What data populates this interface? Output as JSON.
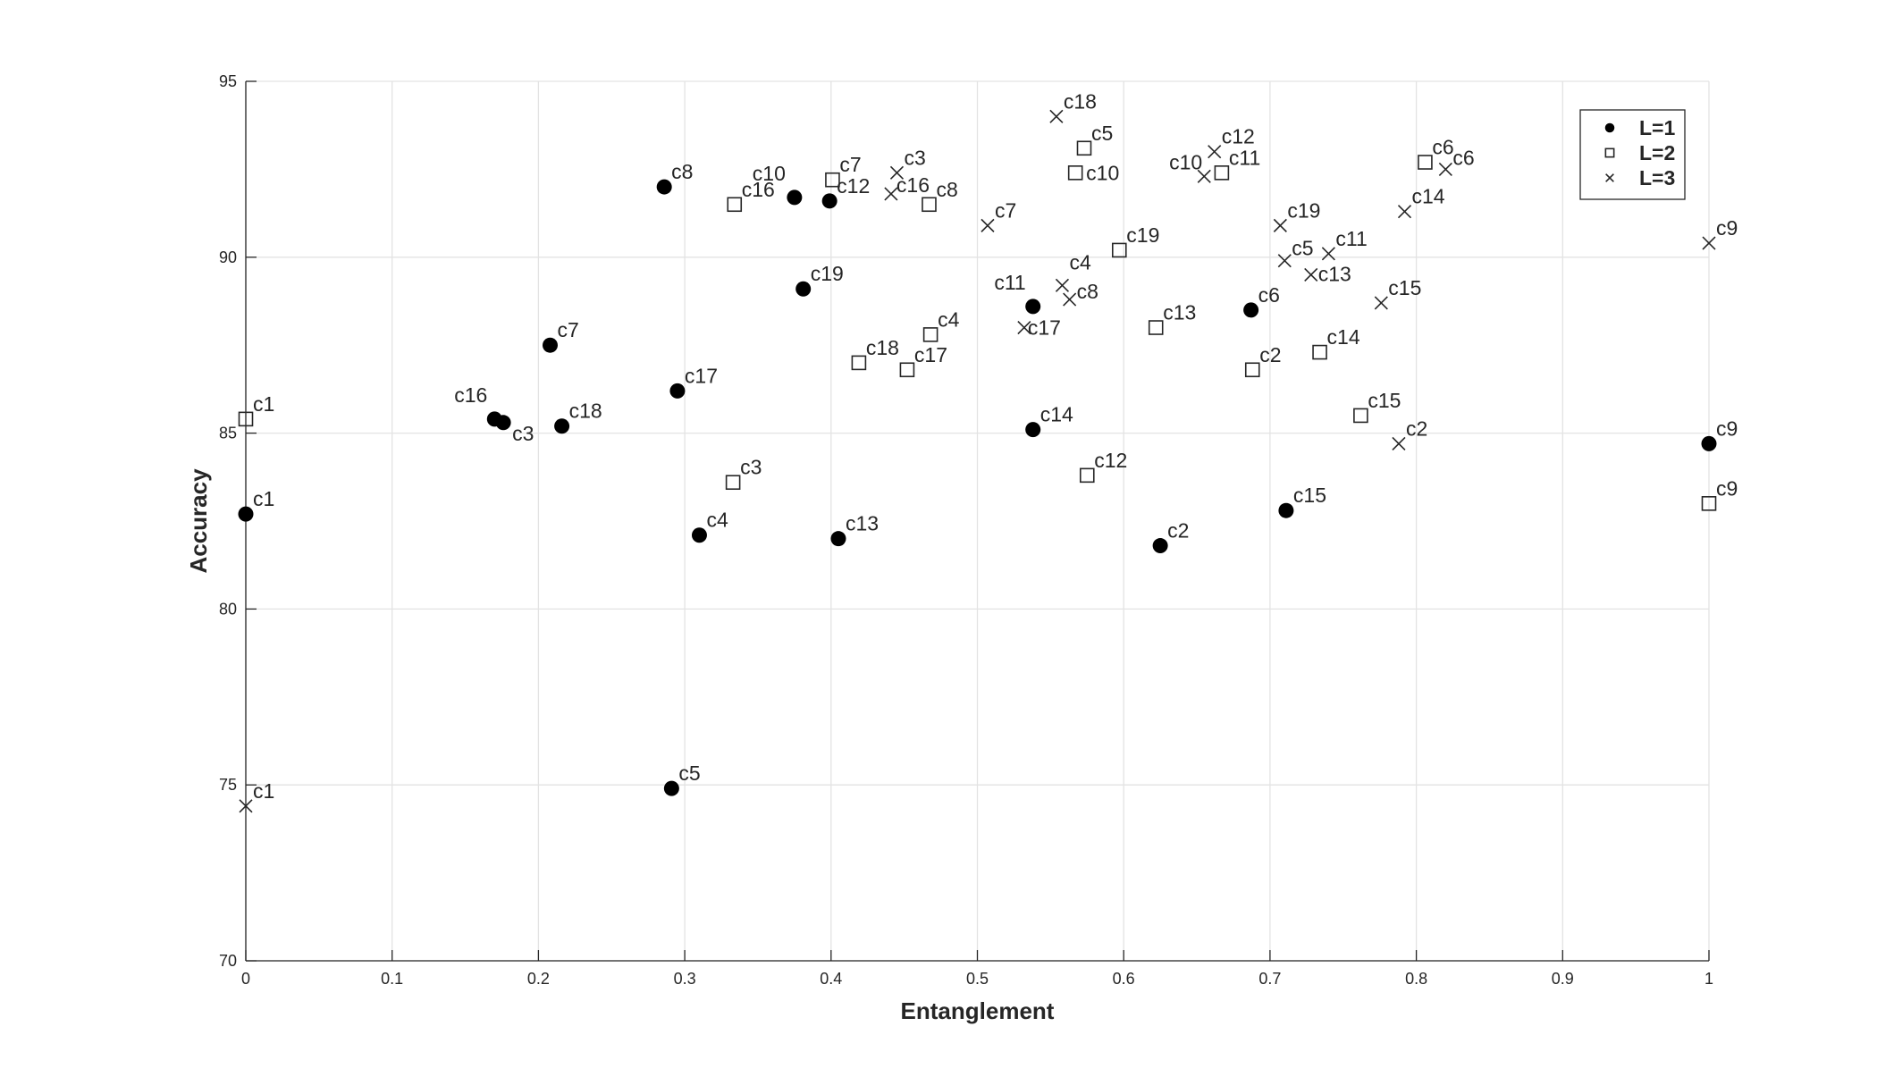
{
  "chart_data": {
    "type": "scatter",
    "title": "",
    "xlabel": "Entanglement",
    "ylabel": "Accuracy",
    "xlim": [
      0,
      1
    ],
    "ylim": [
      70,
      95
    ],
    "xticks": [
      "0",
      "0.1",
      "0.2",
      "0.3",
      "0.4",
      "0.5",
      "0.6",
      "0.7",
      "0.8",
      "0.9",
      "1"
    ],
    "yticks": [
      "70",
      "75",
      "80",
      "85",
      "90",
      "95"
    ],
    "grid": true,
    "legend_position": "top-right",
    "series": [
      {
        "name": "L=1",
        "marker": "filled-circle",
        "color": "#000000",
        "points": [
          {
            "label": "c1",
            "x": 0.0,
            "y": 82.7
          },
          {
            "label": "c2",
            "x": 0.625,
            "y": 81.8
          },
          {
            "label": "c3",
            "x": 0.176,
            "y": 85.3
          },
          {
            "label": "c4",
            "x": 0.31,
            "y": 82.1
          },
          {
            "label": "c5",
            "x": 0.291,
            "y": 74.9
          },
          {
            "label": "c6",
            "x": 0.687,
            "y": 88.5
          },
          {
            "label": "c7",
            "x": 0.208,
            "y": 87.5
          },
          {
            "label": "c8",
            "x": 0.286,
            "y": 92.0
          },
          {
            "label": "c9",
            "x": 1.0,
            "y": 84.7
          },
          {
            "label": "c10",
            "x": 0.375,
            "y": 91.7
          },
          {
            "label": "c11",
            "x": 0.538,
            "y": 88.6
          },
          {
            "label": "c12",
            "x": 0.399,
            "y": 91.6
          },
          {
            "label": "c13",
            "x": 0.405,
            "y": 82.0
          },
          {
            "label": "c14",
            "x": 0.538,
            "y": 85.1
          },
          {
            "label": "c15",
            "x": 0.711,
            "y": 82.8
          },
          {
            "label": "c16",
            "x": 0.17,
            "y": 85.4
          },
          {
            "label": "c17",
            "x": 0.295,
            "y": 86.2
          },
          {
            "label": "c18",
            "x": 0.216,
            "y": 85.2
          },
          {
            "label": "c19",
            "x": 0.381,
            "y": 89.1
          }
        ]
      },
      {
        "name": "L=2",
        "marker": "open-square",
        "color": "#000000",
        "points": [
          {
            "label": "c1",
            "x": 0.0,
            "y": 85.4
          },
          {
            "label": "c2",
            "x": 0.688,
            "y": 86.8
          },
          {
            "label": "c3",
            "x": 0.333,
            "y": 83.6
          },
          {
            "label": "c4",
            "x": 0.468,
            "y": 87.8
          },
          {
            "label": "c5",
            "x": 0.573,
            "y": 93.1
          },
          {
            "label": "c6",
            "x": 0.806,
            "y": 92.7
          },
          {
            "label": "c7",
            "x": 0.401,
            "y": 92.2
          },
          {
            "label": "c8",
            "x": 0.467,
            "y": 91.5
          },
          {
            "label": "c9",
            "x": 1.0,
            "y": 83.0
          },
          {
            "label": "c10",
            "x": 0.567,
            "y": 92.4
          },
          {
            "label": "c11",
            "x": 0.667,
            "y": 92.4
          },
          {
            "label": "c12",
            "x": 0.575,
            "y": 83.8
          },
          {
            "label": "c13",
            "x": 0.622,
            "y": 88.0
          },
          {
            "label": "c14",
            "x": 0.734,
            "y": 87.3
          },
          {
            "label": "c15",
            "x": 0.762,
            "y": 85.5
          },
          {
            "label": "c16",
            "x": 0.334,
            "y": 91.5
          },
          {
            "label": "c17",
            "x": 0.452,
            "y": 86.8
          },
          {
            "label": "c18",
            "x": 0.419,
            "y": 87.0
          },
          {
            "label": "c19",
            "x": 0.597,
            "y": 90.2
          }
        ]
      },
      {
        "name": "L=3",
        "marker": "cross",
        "color": "#000000",
        "points": [
          {
            "label": "c1",
            "x": 0.0,
            "y": 74.4
          },
          {
            "label": "c2",
            "x": 0.788,
            "y": 84.7
          },
          {
            "label": "c3",
            "x": 0.445,
            "y": 92.4
          },
          {
            "label": "c4",
            "x": 0.558,
            "y": 89.2
          },
          {
            "label": "c5",
            "x": 0.71,
            "y": 89.9
          },
          {
            "label": "c6",
            "x": 0.82,
            "y": 92.5
          },
          {
            "label": "c7",
            "x": 0.507,
            "y": 90.9
          },
          {
            "label": "c8",
            "x": 0.563,
            "y": 88.8
          },
          {
            "label": "c9",
            "x": 1.0,
            "y": 90.4
          },
          {
            "label": "c10",
            "x": 0.655,
            "y": 92.3
          },
          {
            "label": "c11",
            "x": 0.74,
            "y": 90.1
          },
          {
            "label": "c12",
            "x": 0.662,
            "y": 93.0
          },
          {
            "label": "c13",
            "x": 0.728,
            "y": 89.5
          },
          {
            "label": "c14",
            "x": 0.792,
            "y": 91.3
          },
          {
            "label": "c15",
            "x": 0.776,
            "y": 88.7
          },
          {
            "label": "c16",
            "x": 0.441,
            "y": 91.8
          },
          {
            "label": "c17",
            "x": 0.532,
            "y": 88.0
          },
          {
            "label": "c18",
            "x": 0.554,
            "y": 94.0
          },
          {
            "label": "c19",
            "x": 0.707,
            "y": 90.9
          }
        ]
      }
    ]
  }
}
